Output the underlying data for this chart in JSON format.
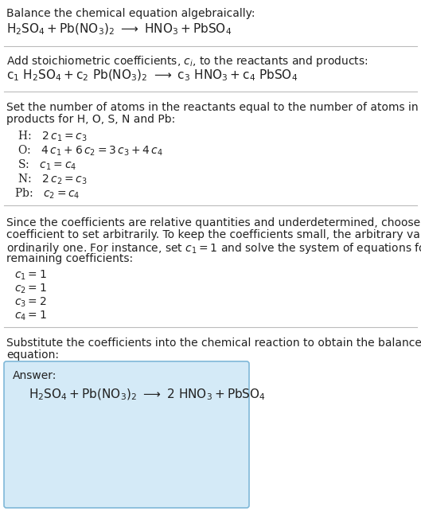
{
  "bg_color": "#ffffff",
  "answer_box_color": "#d4eaf7",
  "answer_box_border": "#7fb8d8",
  "separator_color": "#bbbbbb",
  "section1_header": "Balance the chemical equation algebraically:",
  "section1_eq": "$\\mathrm{H_2SO_4 + Pb(NO_3)_2 \\ \\longrightarrow \\ HNO_3 + PbSO_4}$",
  "section2_header": "Add stoichiometric coefficients, $c_i$, to the reactants and products:",
  "section2_eq": "$\\mathrm{c_1 \\ H_2SO_4 + c_2 \\ Pb(NO_3)_2 \\ \\longrightarrow \\ c_3 \\ HNO_3 + c_4 \\ PbSO_4}$",
  "section3_header_line1": "Set the number of atoms in the reactants equal to the number of atoms in the",
  "section3_header_line2": "products for H, O, S, N and Pb:",
  "section3_eqs": [
    " H:   $2\\,c_1 = c_3$",
    " O:   $4\\,c_1 + 6\\,c_2 = 3\\,c_3 + 4\\,c_4$",
    " S:   $c_1 = c_4$",
    " N:   $2\\,c_2 = c_3$",
    "Pb:   $c_2 = c_4$"
  ],
  "section4_lines": [
    "Since the coefficients are relative quantities and underdetermined, choose a",
    "coefficient to set arbitrarily. To keep the coefficients small, the arbitrary value is",
    "ordinarily one. For instance, set $c_1 = 1$ and solve the system of equations for the",
    "remaining coefficients:"
  ],
  "coeff_lines": [
    "$c_1 = 1$",
    "$c_2 = 1$",
    "$c_3 = 2$",
    "$c_4 = 1$"
  ],
  "section5_header_line1": "Substitute the coefficients into the chemical reaction to obtain the balanced",
  "section5_header_line2": "equation:",
  "answer_label": "Answer:",
  "answer_eq": "$\\mathrm{H_2SO_4 + Pb(NO_3)_2 \\ \\longrightarrow \\ 2\\ HNO_3 + PbSO_4}$"
}
